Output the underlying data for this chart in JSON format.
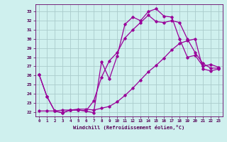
{
  "xlabel": "Windchill (Refroidissement éolien,°C)",
  "background_color": "#cff0ee",
  "grid_color": "#aacccc",
  "line_color": "#990099",
  "xlim": [
    -0.5,
    23.5
  ],
  "ylim": [
    21.5,
    33.8
  ],
  "xticks": [
    0,
    1,
    2,
    3,
    4,
    5,
    6,
    7,
    8,
    9,
    10,
    11,
    12,
    13,
    14,
    15,
    16,
    17,
    18,
    19,
    20,
    21,
    22,
    23
  ],
  "yticks": [
    22,
    23,
    24,
    25,
    26,
    27,
    28,
    29,
    30,
    31,
    32,
    33
  ],
  "line1_x": [
    0,
    1,
    2,
    3,
    4,
    5,
    6,
    7,
    8,
    9,
    10,
    11,
    12,
    13,
    14,
    15,
    16,
    17,
    18,
    19,
    20,
    21,
    22,
    23
  ],
  "line1_y": [
    26.1,
    23.7,
    22.1,
    21.9,
    22.2,
    22.2,
    22.1,
    21.9,
    27.5,
    25.6,
    28.1,
    31.6,
    32.4,
    32.0,
    33.0,
    33.3,
    32.5,
    32.4,
    30.0,
    28.0,
    28.2,
    27.0,
    27.2,
    26.9
  ],
  "line2_x": [
    0,
    1,
    2,
    3,
    4,
    5,
    6,
    7,
    8,
    9,
    10,
    11,
    12,
    13,
    14,
    15,
    16,
    17,
    18,
    19,
    20,
    21,
    22,
    23
  ],
  "line2_y": [
    26.1,
    23.7,
    22.1,
    21.9,
    22.2,
    22.2,
    22.1,
    23.2,
    25.8,
    27.6,
    28.5,
    30.1,
    31.0,
    31.8,
    32.6,
    31.9,
    31.8,
    32.0,
    31.8,
    30.0,
    28.5,
    27.3,
    26.8,
    26.8
  ],
  "line3_x": [
    0,
    1,
    2,
    3,
    4,
    5,
    6,
    7,
    8,
    9,
    10,
    11,
    12,
    13,
    14,
    15,
    16,
    17,
    18,
    19,
    20,
    21,
    22,
    23
  ],
  "line3_y": [
    22.1,
    22.1,
    22.1,
    22.2,
    22.2,
    22.3,
    22.3,
    22.2,
    22.4,
    22.6,
    23.1,
    23.8,
    24.6,
    25.5,
    26.4,
    27.1,
    27.9,
    28.8,
    29.5,
    29.8,
    30.0,
    26.7,
    26.5,
    26.7
  ]
}
